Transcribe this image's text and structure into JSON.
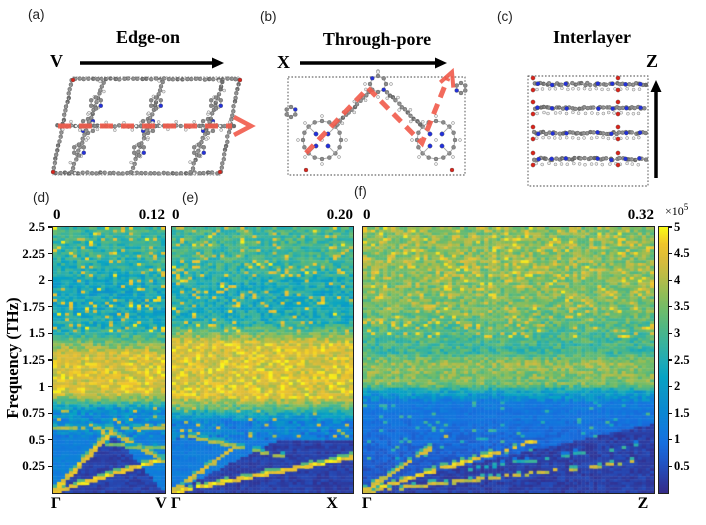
{
  "figure": {
    "structure_panels": [
      {
        "id": "a",
        "label": "(a)",
        "title": "Edge-on",
        "direction_label": "V"
      },
      {
        "id": "b",
        "label": "(b)",
        "title": "Through-pore",
        "direction_label": "X"
      },
      {
        "id": "c",
        "label": "(c)",
        "title": "Interlayer",
        "direction_label": "Z"
      }
    ],
    "atom_colors": {
      "carbon": "#8b8b8b",
      "carbon_dark": "#6f6f6f",
      "hydrogen": "#eaeaea",
      "nitrogen": "#2331d8",
      "oxygen": "#d8251c",
      "bond": "#a6a6a6",
      "outline": "#555555"
    },
    "propagation_arrow_color": "#f15a4a",
    "direction_arrow_color": "#000000"
  },
  "chart_data": {
    "type": "heatmap",
    "shared": {
      "ylabel": "Frequency (THz)",
      "ylim": [
        0,
        2.5
      ],
      "yticks": [
        "2.5",
        "2.25",
        "2",
        "1.75",
        "1.5",
        "1.25",
        "1",
        "0.75",
        "0.5",
        "0.25"
      ],
      "grid": false,
      "colormap": "parula",
      "colormap_stops": [
        [
          0,
          "#352a87"
        ],
        [
          0.125,
          "#2058c8"
        ],
        [
          0.1875,
          "#176fde"
        ],
        [
          0.25,
          "#107ddc"
        ],
        [
          0.3125,
          "#0b89d1"
        ],
        [
          0.375,
          "#0d95c8"
        ],
        [
          0.4375,
          "#06a3c4"
        ],
        [
          0.5,
          "#21abb5"
        ],
        [
          0.5625,
          "#38b39e"
        ],
        [
          0.625,
          "#50b784"
        ],
        [
          0.6875,
          "#6dbc6c"
        ],
        [
          0.75,
          "#92bd57"
        ],
        [
          0.8125,
          "#b8bc48"
        ],
        [
          0.875,
          "#d9bb3c"
        ],
        [
          0.9375,
          "#f0c52c"
        ],
        [
          1,
          "#f9fb15"
        ]
      ],
      "colorbar": {
        "multiplier": "×10",
        "exponent": "5",
        "ticks": [
          "0.5",
          "1",
          "1.5",
          "2",
          "2.5",
          "3",
          "3.5",
          "4",
          "4.5",
          "5"
        ],
        "range": [
          0,
          5
        ],
        "position": "right"
      }
    },
    "heatmaps": [
      {
        "id": "d",
        "label": "(d)",
        "path_start": "Γ",
        "path_end": "V",
        "top_left": "0",
        "top_right": "0.12",
        "k_range": [
          0,
          0.12
        ],
        "cols": 28,
        "rows": 96,
        "seed": 7,
        "noise": 1.15,
        "profile": [
          [
            0.52,
            1.45
          ],
          [
            0.62,
            1.6
          ],
          [
            0.78,
            1.7
          ],
          [
            0.88,
            3.6
          ],
          [
            0.95,
            4.4
          ],
          [
            1.3,
            4.4
          ],
          [
            1.42,
            3.4
          ],
          [
            1.55,
            2.45
          ],
          [
            1.9,
            2.3
          ],
          [
            2.2,
            2.7
          ],
          [
            2.5,
            2.85
          ]
        ],
        "low_region": {
          "top": 0.52,
          "below": 0.32,
          "above": 1.3,
          "slope": 1.12,
          "fold": {
            "x_peak": 0.52,
            "peak": 0.58
          },
          "noise": 0.35
        },
        "hi_speckle": {
          "fmin": 1.5,
          "p": 0.11,
          "v": 4.15,
          "dv": 0.8
        },
        "mid_speckle": {
          "fmin": 0.55,
          "fmax": 0.8,
          "p": 0.05,
          "v": 3.8
        },
        "branches": [
          {
            "pts": [
              [
                0,
                0.01
              ],
              [
                1,
                0.33
              ]
            ],
            "p": 0.85,
            "v": 4.7
          },
          {
            "pts": [
              [
                0,
                0.01
              ],
              [
                0.52,
                0.58
              ]
            ],
            "p": 0.8,
            "v": 4.5
          },
          {
            "pts": [
              [
                0.52,
                0.58
              ],
              [
                1,
                0.3
              ]
            ],
            "p": 0.65,
            "v": 4.2
          },
          {
            "pts": [
              [
                0,
                0.62
              ],
              [
                1,
                0.6
              ]
            ],
            "p": 0.42,
            "v": 4.0
          },
          {
            "pts": [
              [
                0.45,
                0.45
              ],
              [
                1,
                0.43
              ]
            ],
            "p": 0.3,
            "v": 3.6
          }
        ]
      },
      {
        "id": "e",
        "label": "(e)",
        "path_start": "Γ",
        "path_end": "X",
        "top_left": "0",
        "top_right": "0.20",
        "k_range": [
          0,
          0.2
        ],
        "cols": 45,
        "rows": 96,
        "seed": 13,
        "noise": 1.15,
        "profile": [
          [
            0.5,
            1.25
          ],
          [
            0.68,
            1.45
          ],
          [
            0.8,
            3.2
          ],
          [
            0.9,
            4.4
          ],
          [
            1.4,
            4.4
          ],
          [
            1.52,
            3.3
          ],
          [
            1.62,
            2.5
          ],
          [
            1.95,
            2.45
          ],
          [
            2.15,
            2.9
          ],
          [
            2.5,
            3.0
          ]
        ],
        "low_region": {
          "top": 0.5,
          "below": 0.3,
          "above": 1.2,
          "slope": 0.85,
          "noise": 0.35
        },
        "hi_speckle": {
          "fmin": 1.5,
          "p": 0.1,
          "v": 4.15,
          "dv": 0.8
        },
        "mid_speckle": {
          "fmin": 0.52,
          "fmax": 0.8,
          "p": 0.05,
          "v": 3.8
        },
        "branches": [
          {
            "pts": [
              [
                0,
                0.01
              ],
              [
                1,
                0.34
              ]
            ],
            "p": 0.8,
            "v": 4.7
          },
          {
            "pts": [
              [
                0,
                0.01
              ],
              [
                0.42,
                0.52
              ]
            ],
            "p": 0.5,
            "v": 4.3,
            "fade": 1
          },
          {
            "pts": [
              [
                0.05,
                0.55
              ],
              [
                0.62,
                0.34
              ]
            ],
            "p": 0.38,
            "v": 3.9
          }
        ]
      },
      {
        "id": "f",
        "label": "(f)",
        "path_start": "Γ",
        "path_end": "Z",
        "top_left": "0",
        "top_right": "0.32",
        "k_range": [
          0,
          0.32
        ],
        "cols": 72,
        "rows": 96,
        "seed": 23,
        "noise": 1.1,
        "profile": [
          [
            0.85,
            1.35
          ],
          [
            0.95,
            2.1
          ],
          [
            1.02,
            3.5
          ],
          [
            1.22,
            3.75
          ],
          [
            1.32,
            2.9
          ],
          [
            1.5,
            3.1
          ],
          [
            1.75,
            3.5
          ],
          [
            2.2,
            3.65
          ],
          [
            2.5,
            3.6
          ]
        ],
        "low_region": {
          "top": 0.85,
          "below": 0.3,
          "slope": 0.6,
          "intercept": 0.05,
          "grad": [
            0.45,
            0.85
          ],
          "noise": 0.4
        },
        "hi_speckle": {
          "fmin": 1.45,
          "p": 0.13,
          "v": 4.2,
          "dv": 0.7
        },
        "mid_speckle": {
          "fmin": 0.3,
          "fmax": 0.85,
          "p": 0.045,
          "v": 2.3
        },
        "branches": [
          {
            "pts": [
              [
                0,
                0.01
              ],
              [
                0.6,
                0.5
              ]
            ],
            "p": 0.6,
            "v": 4.6,
            "fade": 1
          },
          {
            "pts": [
              [
                0,
                0.01
              ],
              [
                0.95,
                0.3
              ]
            ],
            "p": 0.5,
            "v": 4.2,
            "fade": 1
          },
          {
            "pts": [
              [
                0,
                0.01
              ],
              [
                0.3,
                0.55
              ]
            ],
            "p": 0.4,
            "v": 4.3,
            "fade": 1
          },
          {
            "pts": [
              [
                0.35,
                0.22
              ],
              [
                1,
                0.47
              ]
            ],
            "p": 0.14,
            "v": 2.6
          }
        ]
      }
    ]
  }
}
